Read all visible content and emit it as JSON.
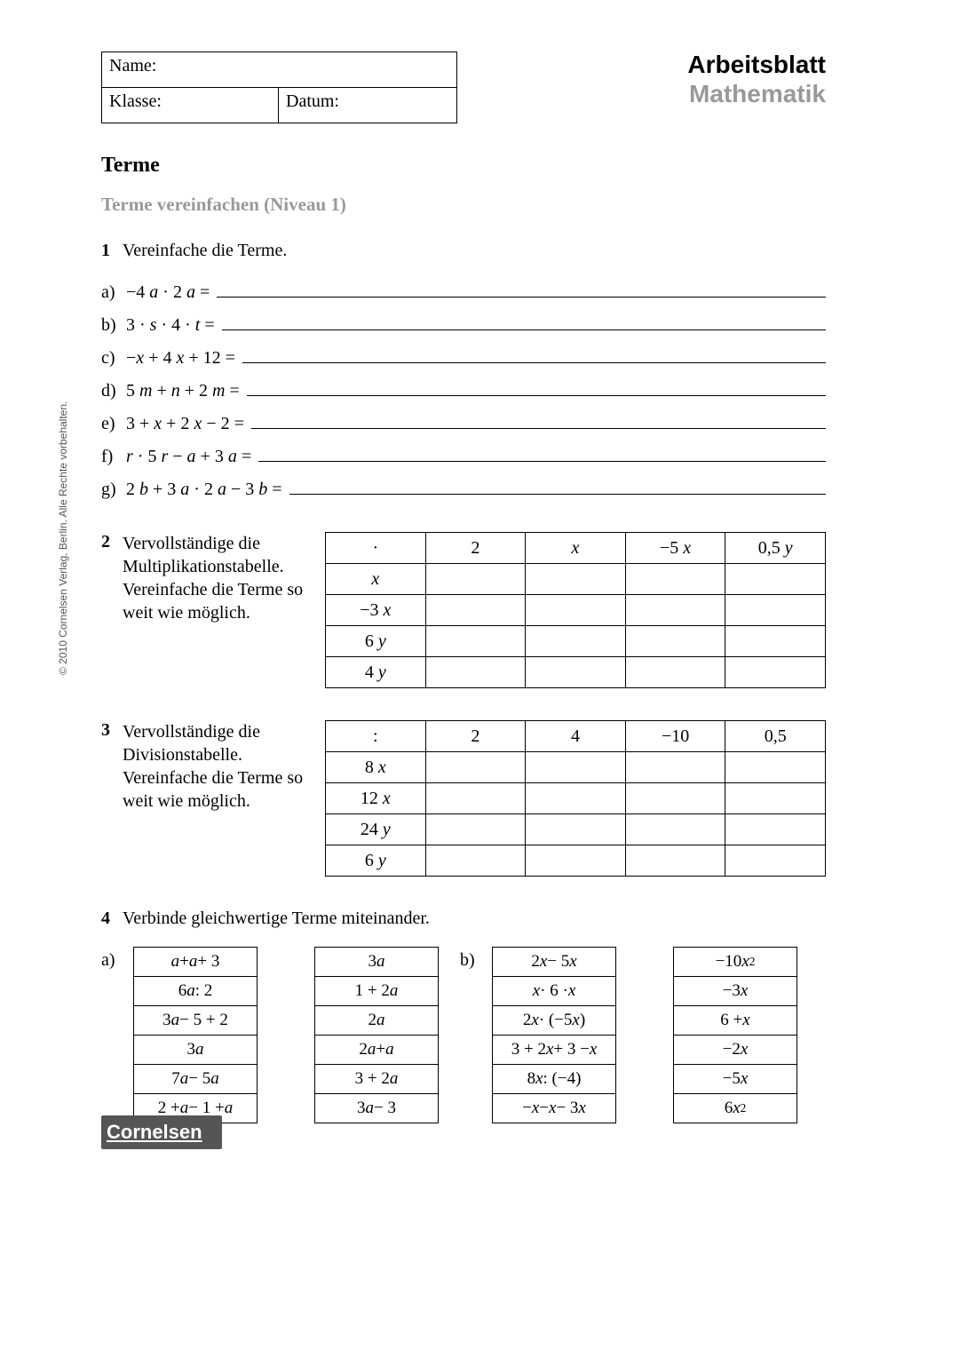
{
  "copyright": "© 2010 Cornelsen Verlag, Berlin. Alle Rechte vorbehalten.",
  "header": {
    "name_label": "Name:",
    "class_label": "Klasse:",
    "date_label": "Datum:",
    "title1": "Arbeitsblatt",
    "title2": "Mathematik"
  },
  "section_title": "Terme",
  "subtitle": "Terme vereinfachen (Niveau 1)",
  "task1": {
    "num": "1",
    "text": "Vereinfache die Terme.",
    "items": [
      {
        "lbl": "a)",
        "expr_html": "−4 <span class='v'>a</span> · 2 <span class='v'>a</span> ="
      },
      {
        "lbl": "b)",
        "expr_html": "3 · <span class='v'>s</span> · 4 · <span class='v'>t</span> ="
      },
      {
        "lbl": "c)",
        "expr_html": "−<span class='v'>x</span> + 4 <span class='v'>x</span> + 12 ="
      },
      {
        "lbl": "d)",
        "expr_html": "5 <span class='v'>m</span> + <span class='v'>n</span> + 2 <span class='v'>m</span> ="
      },
      {
        "lbl": "e)",
        "expr_html": "3 + <span class='v'>x</span> + 2 <span class='v'>x</span> − 2 ="
      },
      {
        "lbl": "f)",
        "expr_html": "<span class='v'>r</span> · 5 <span class='v'>r</span> − <span class='v'>a</span> + 3 <span class='v'>a</span> ="
      },
      {
        "lbl": "g)",
        "expr_html": "2 <span class='v'>b</span> + 3 <span class='v'>a</span> · 2 <span class='v'>a</span> − 3 <span class='v'>b</span> ="
      }
    ]
  },
  "task2": {
    "num": "2",
    "text": "Vervollständige die Multiplikationstabelle. Vereinfache die Terme so weit wie möglich.",
    "header_row_html": [
      "·",
      "2",
      "<span class='v'>x</span>",
      "−5 <span class='v'>x</span>",
      "0,5 <span class='v'>y</span>"
    ],
    "row_labels_html": [
      "<span class='v'>x</span>",
      "−3 <span class='v'>x</span>",
      "6 <span class='v'>y</span>",
      "4 <span class='v'>y</span>"
    ]
  },
  "task3": {
    "num": "3",
    "text": "Vervollständige die Divisionstabelle. Vereinfache die Terme so weit wie möglich.",
    "header_row_html": [
      ":",
      "2",
      "4",
      "−10",
      "0,5"
    ],
    "row_labels_html": [
      "8 <span class='v'>x</span>",
      "12 <span class='v'>x</span>",
      "24 <span class='v'>y</span>",
      "6 <span class='v'>y</span>"
    ]
  },
  "task4": {
    "num": "4",
    "text": "Verbinde gleichwertige Terme miteinander.",
    "a_lbl": "a)",
    "b_lbl": "b)",
    "col_a_left_html": [
      "<span class='v'>a</span> + <span class='v'>a</span> + 3",
      "6 <span class='v'>a</span> : 2",
      "3 <span class='v'>a</span> − 5 + 2",
      "3 <span class='v'>a</span>",
      "7 <span class='v'>a</span> − 5 <span class='v'>a</span>",
      "2 + <span class='v'>a</span> − 1 + <span class='v'>a</span>"
    ],
    "col_a_right_html": [
      "3 <span class='v'>a</span>",
      "1 + 2 <span class='v'>a</span>",
      "2 <span class='v'>a</span>",
      "2 <span class='v'>a</span> + <span class='v'>a</span>",
      "3 + 2 <span class='v'>a</span>",
      "3 <span class='v'>a</span> − 3"
    ],
    "col_b_left_html": [
      "2 <span class='v'>x</span> − 5 <span class='v'>x</span>",
      "<span class='v'>x</span> · 6 · <span class='v'>x</span>",
      "2 <span class='v'>x</span> · (−5 <span class='v'>x</span>)",
      "3 + 2 <span class='v'>x</span> + 3 − <span class='v'>x</span>",
      "8 <span class='v'>x</span> : (−4)",
      "−<span class='v'>x</span> − <span class='v'>x</span> − 3 <span class='v'>x</span>"
    ],
    "col_b_right_html": [
      "−10 <span class='v'>x</span><sup>2</sup>",
      "−3 <span class='v'>x</span>",
      "6 + <span class='v'>x</span>",
      "−2 <span class='v'>x</span>",
      "−5 <span class='v'>x</span>",
      "6 <span class='v'>x</span><sup>2</sup>"
    ]
  },
  "footer_logo": "Cornelsen"
}
